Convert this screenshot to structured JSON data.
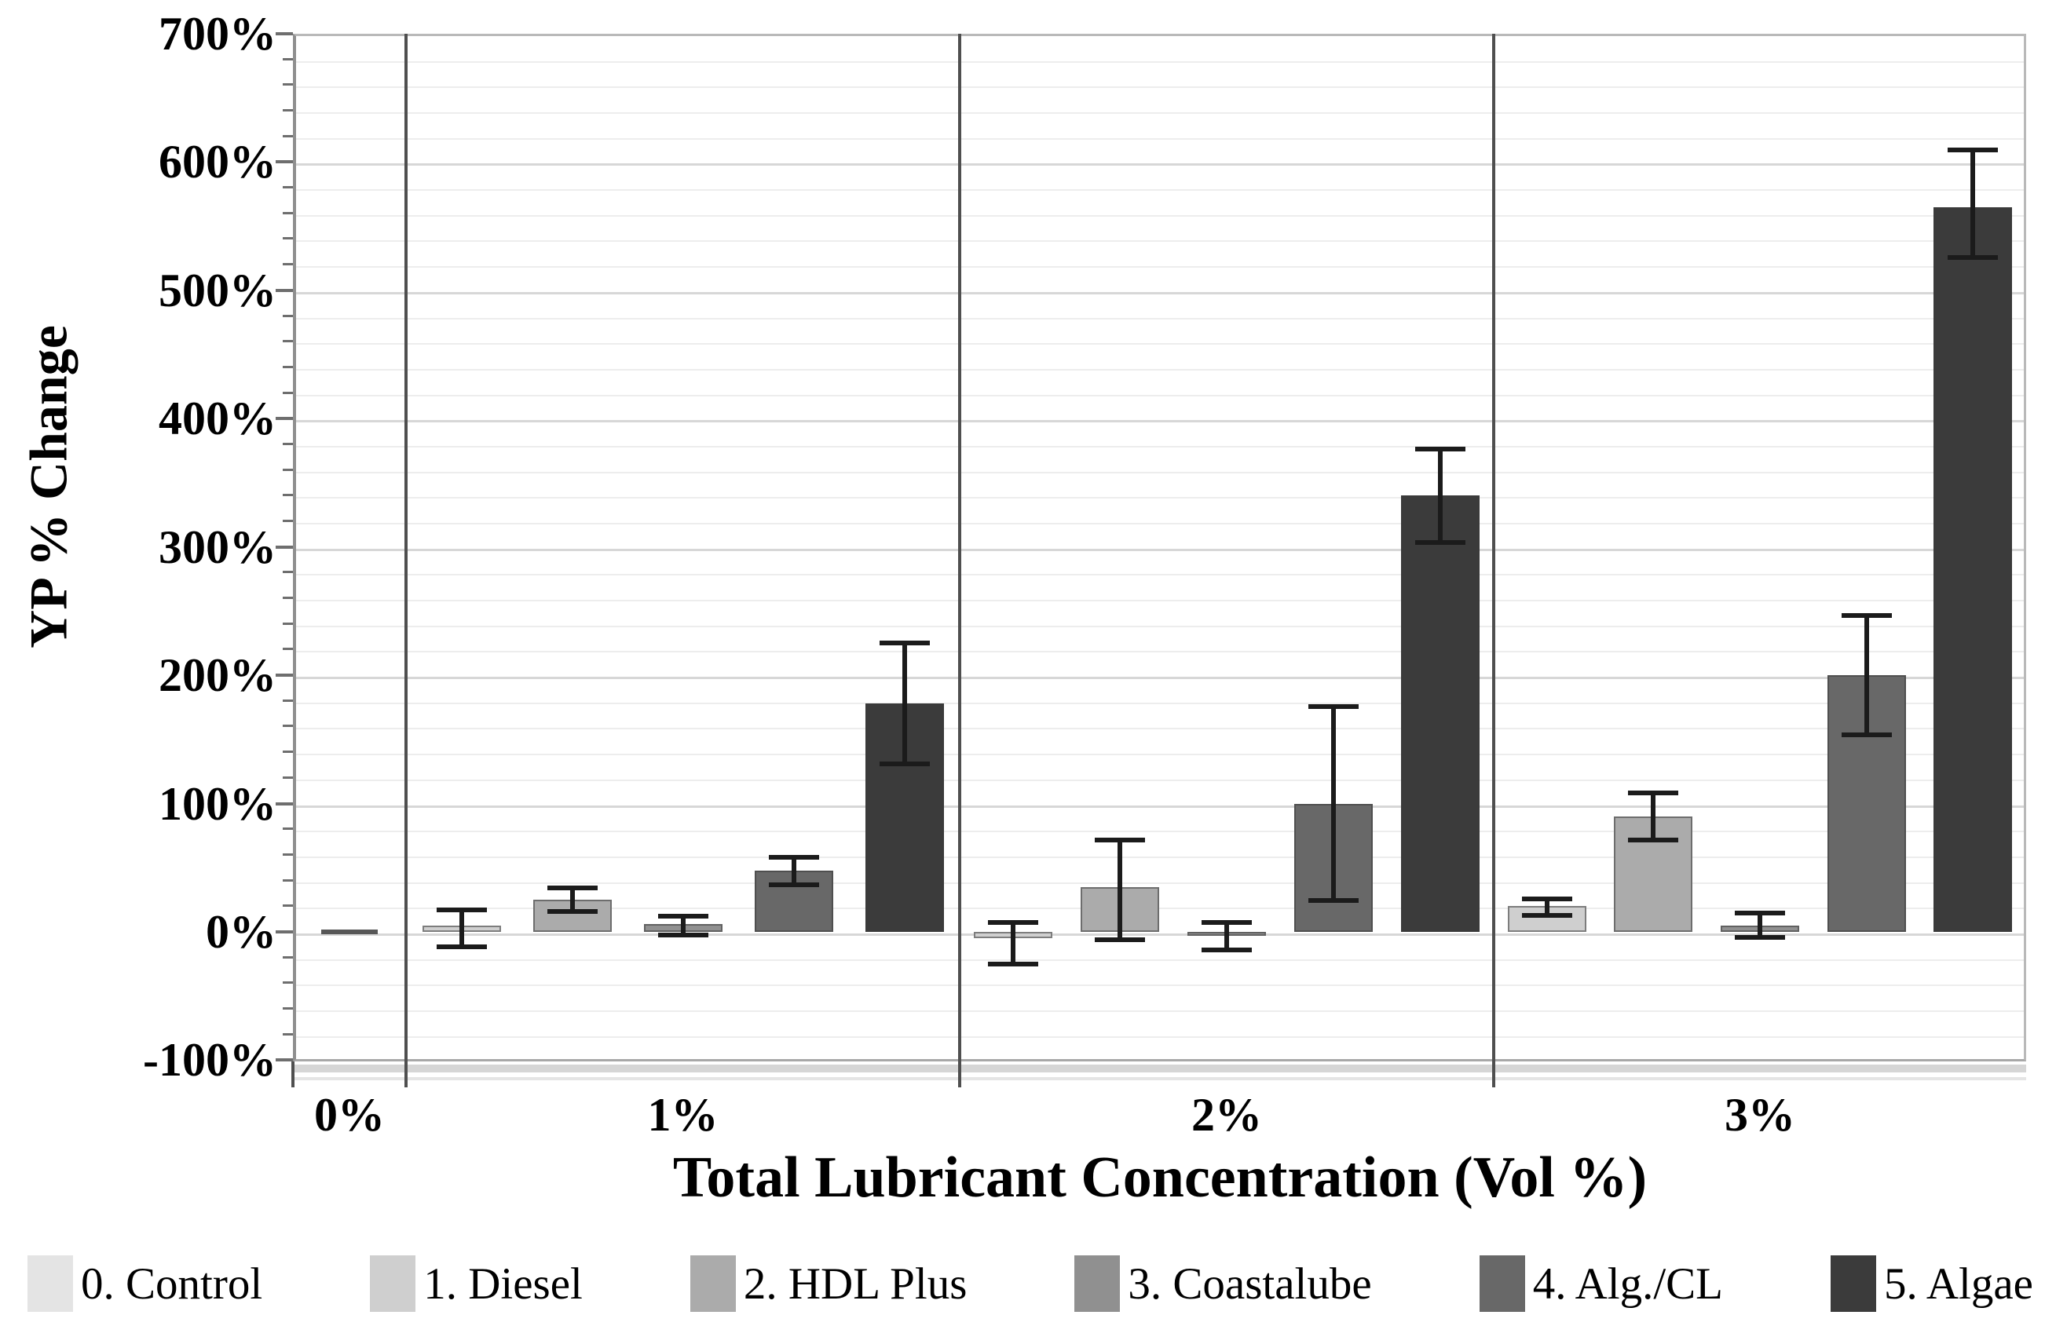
{
  "figure": {
    "background": "#ffffff",
    "text_color": "#000000",
    "error_bar_color": "#1b1b1b",
    "separator_color": "#4f4f4f"
  },
  "chart_data": {
    "type": "bar",
    "title": "",
    "xlabel": "Total Lubricant Concentration (Vol %)",
    "ylabel": "YP % Change",
    "legend_position": "bottom",
    "grid": true,
    "categories": [
      "0%",
      "1%",
      "2%",
      "3%"
    ],
    "y_axis": {
      "min": -100,
      "max": 700,
      "major_step": 100,
      "minor_step": 20,
      "unit": "%",
      "ticks": [
        {
          "label": "700%",
          "value": 700
        },
        {
          "label": "600%",
          "value": 600
        },
        {
          "label": "500%",
          "value": 500
        },
        {
          "label": "400%",
          "value": 400
        },
        {
          "label": "300%",
          "value": 300
        },
        {
          "label": "200%",
          "value": 200
        },
        {
          "label": "100%",
          "value": 100
        },
        {
          "label": "0%",
          "value": 0
        },
        {
          "label": "-100%",
          "value": -100
        }
      ]
    },
    "series": [
      {
        "name": "0. Control",
        "color": "#e4e4e4",
        "values": [
          0,
          null,
          null,
          null
        ],
        "err_lo": [
          null,
          null,
          null,
          null
        ],
        "err_hi": [
          null,
          null,
          null,
          null
        ]
      },
      {
        "name": "1. Diesel",
        "color": "#cfcfcf",
        "values": [
          null,
          5,
          -5,
          20
        ],
        "err_lo": [
          null,
          -12,
          -26,
          12
        ],
        "err_hi": [
          null,
          18,
          8,
          26
        ]
      },
      {
        "name": "2. HDL Plus",
        "color": "#ababab",
        "values": [
          null,
          25,
          35,
          90
        ],
        "err_lo": [
          null,
          15,
          -7,
          71
        ],
        "err_hi": [
          null,
          35,
          72,
          109
        ]
      },
      {
        "name": "3. Coastalube",
        "color": "#909090",
        "values": [
          null,
          6,
          -3,
          5
        ],
        "err_lo": [
          null,
          -3,
          -15,
          -5
        ],
        "err_hi": [
          null,
          13,
          8,
          15
        ]
      },
      {
        "name": "4. Alg./CL",
        "color": "#686868",
        "values": [
          null,
          48,
          100,
          200
        ],
        "err_lo": [
          null,
          36,
          24,
          153
        ],
        "err_hi": [
          null,
          59,
          176,
          247
        ]
      },
      {
        "name": "5. Algae",
        "color": "#3b3b3b",
        "values": [
          null,
          178,
          340,
          565
        ],
        "err_lo": [
          null,
          130,
          303,
          525
        ],
        "err_hi": [
          null,
          226,
          377,
          610
        ]
      }
    ]
  }
}
